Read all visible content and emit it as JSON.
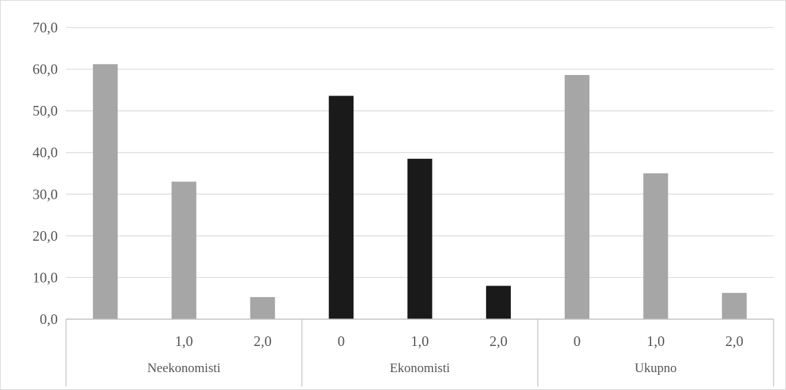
{
  "chart_data": {
    "type": "bar",
    "groups": [
      {
        "label": "Neekonomisti",
        "color": "#a6a6a6",
        "categories": [
          "",
          "1,0",
          "2,0"
        ],
        "values": [
          61.2,
          33.0,
          5.3
        ]
      },
      {
        "label": "Ekonomisti",
        "color": "#1a1a1a",
        "categories": [
          "0",
          "1,0",
          "2,0"
        ],
        "values": [
          53.6,
          38.5,
          8.0
        ]
      },
      {
        "label": "Ukupno",
        "color": "#a6a6a6",
        "categories": [
          "0",
          "1,0",
          "2,0"
        ],
        "values": [
          58.6,
          35.0,
          6.3
        ]
      }
    ],
    "yticks": [
      "0,0",
      "10,0",
      "20,0",
      "30,0",
      "40,0",
      "50,0",
      "60,0",
      "70,0"
    ],
    "ylim": [
      0,
      70
    ],
    "grid": true,
    "title": "",
    "xlabel": "",
    "ylabel": ""
  }
}
